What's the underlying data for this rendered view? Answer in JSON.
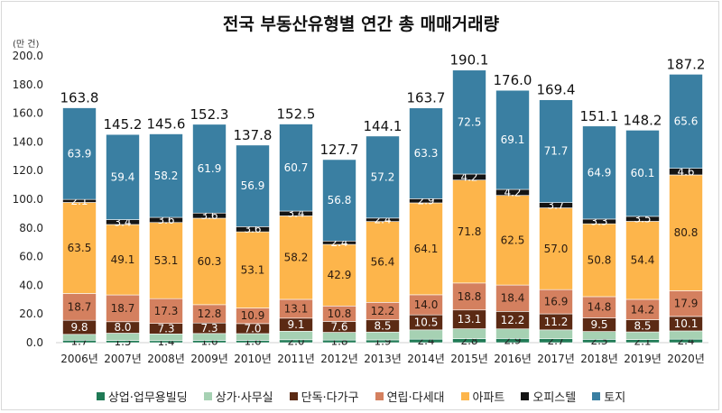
{
  "chart_data": {
    "type": "bar",
    "stacked": true,
    "title": "전국 부동산유형별 연간 총 매매거래량",
    "ylabel": "(만 건)",
    "ylim": [
      0,
      200
    ],
    "yticks": [
      "0.0",
      "20.0",
      "40.0",
      "60.0",
      "80.0",
      "100.0",
      "120.0",
      "140.0",
      "160.0",
      "180.0",
      "200.0"
    ],
    "grid": false,
    "legend_position": "bottom",
    "categories": [
      "2006년",
      "2007년",
      "2008년",
      "2009년",
      "2010년",
      "2011년",
      "2012년",
      "2013년",
      "2014년",
      "2015년",
      "2016년",
      "2017년",
      "2018년",
      "2019년",
      "2020년"
    ],
    "totals": [
      163.8,
      145.2,
      145.6,
      152.3,
      137.8,
      152.5,
      127.7,
      144.1,
      163.7,
      190.1,
      176.0,
      169.4,
      151.1,
      148.2,
      187.2
    ],
    "series": [
      {
        "name": "상업·업무용빌딩",
        "color": "#1f7a55",
        "label_color": "#222",
        "labeled": true,
        "values": [
          1.7,
          1.5,
          1.4,
          1.6,
          1.6,
          2.0,
          1.8,
          1.9,
          2.4,
          2.8,
          2.9,
          2.7,
          2.3,
          2.1,
          2.4
        ]
      },
      {
        "name": "상가·사무실",
        "color": "#a6d1b3",
        "label_color": "#222",
        "labeled": false,
        "values": [
          4.1,
          5.1,
          4.7,
          4.8,
          4.7,
          6.0,
          5.4,
          5.5,
          6.5,
          6.9,
          6.7,
          6.2,
          5.5,
          5.4,
          5.8
        ]
      },
      {
        "name": "단독·다가구",
        "color": "#5b2a14",
        "label_color": "#fff",
        "labeled": true,
        "values": [
          9.8,
          8.0,
          7.3,
          7.3,
          7.0,
          9.1,
          7.6,
          8.5,
          10.5,
          13.1,
          12.2,
          11.2,
          9.5,
          8.5,
          10.1
        ]
      },
      {
        "name": "연립·다세대",
        "color": "#d4805f",
        "label_color": "#2a1a10",
        "labeled": true,
        "values": [
          18.7,
          18.7,
          17.3,
          12.8,
          10.9,
          13.1,
          10.8,
          12.2,
          14.0,
          18.8,
          18.4,
          16.9,
          14.8,
          14.2,
          17.9
        ]
      },
      {
        "name": "아파트",
        "color": "#fdb54b",
        "label_color": "#2a1a10",
        "labeled": true,
        "values": [
          63.5,
          49.1,
          53.1,
          60.3,
          53.1,
          58.2,
          42.9,
          56.4,
          64.1,
          71.8,
          62.5,
          57.0,
          50.8,
          54.4,
          80.8
        ]
      },
      {
        "name": "오피스텔",
        "color": "#141414",
        "label_color": "#fff",
        "labeled": true,
        "values": [
          2.1,
          3.4,
          3.6,
          3.6,
          3.6,
          3.4,
          2.4,
          2.4,
          2.9,
          4.2,
          4.2,
          3.7,
          3.3,
          3.5,
          4.6
        ]
      },
      {
        "name": "토지",
        "color": "#3a7fa2",
        "label_color": "#fff",
        "labeled": true,
        "values": [
          63.9,
          59.4,
          58.2,
          61.9,
          56.9,
          60.7,
          56.8,
          57.2,
          63.3,
          72.5,
          69.1,
          71.7,
          64.9,
          60.1,
          65.6
        ]
      }
    ]
  }
}
